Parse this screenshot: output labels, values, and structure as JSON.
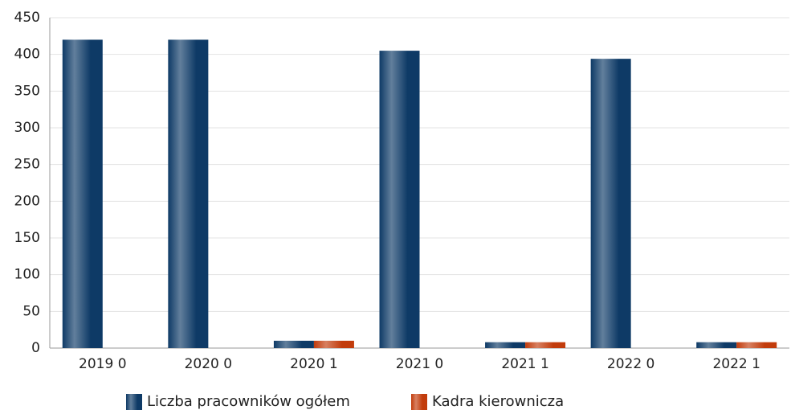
{
  "chart_data": {
    "type": "bar",
    "categories": [
      "2019 0",
      "2020 0",
      "2020 1",
      "2021 0",
      "2021 1",
      "2022 0",
      "2022 1"
    ],
    "series": [
      {
        "name": "Liczba pracowników ogółem",
        "color": "#0e3a66",
        "values": [
          420,
          420,
          10,
          405,
          8,
          394,
          8
        ]
      },
      {
        "name": "Kadra kierownicza",
        "color": "#c23c0c",
        "values": [
          0,
          0,
          10,
          0,
          8,
          0,
          8
        ]
      }
    ],
    "ylim": [
      0,
      450
    ],
    "yticks": [
      0,
      50,
      100,
      150,
      200,
      250,
      300,
      350,
      400,
      450
    ],
    "grid": true,
    "legend": "bottom"
  }
}
